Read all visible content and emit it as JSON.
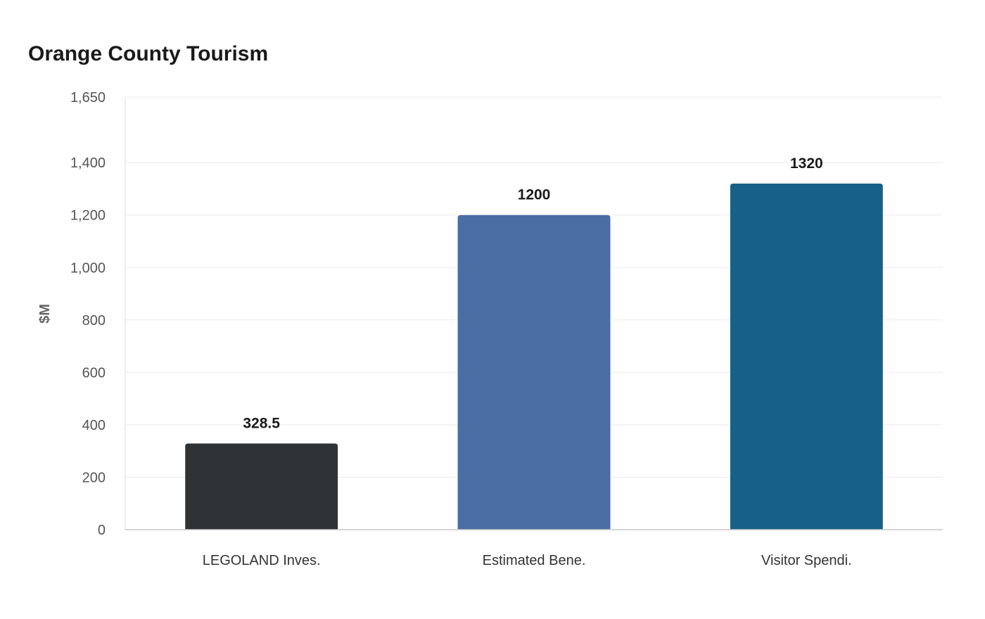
{
  "chart_data": {
    "type": "bar",
    "title": "Orange County Tourism",
    "xlabel": "",
    "ylabel": "$M",
    "categories": [
      "LEGOLAND Inves.",
      "Estimated Bene.",
      "Visitor Spendi."
    ],
    "values": [
      328.5,
      1200,
      1320
    ],
    "value_labels": [
      "328.5",
      "1200",
      "1320"
    ],
    "bar_colors": [
      "#2f3337",
      "#4a6ea3",
      "#176088"
    ],
    "ylim": [
      0,
      1650
    ],
    "yticks": [
      0,
      200,
      400,
      600,
      800,
      1000,
      1200,
      1400,
      1650
    ],
    "ytick_labels": [
      "0",
      "200",
      "400",
      "600",
      "800",
      "1,000",
      "1,200",
      "1,400",
      "1,650"
    ],
    "grid": true,
    "legend": "none"
  }
}
